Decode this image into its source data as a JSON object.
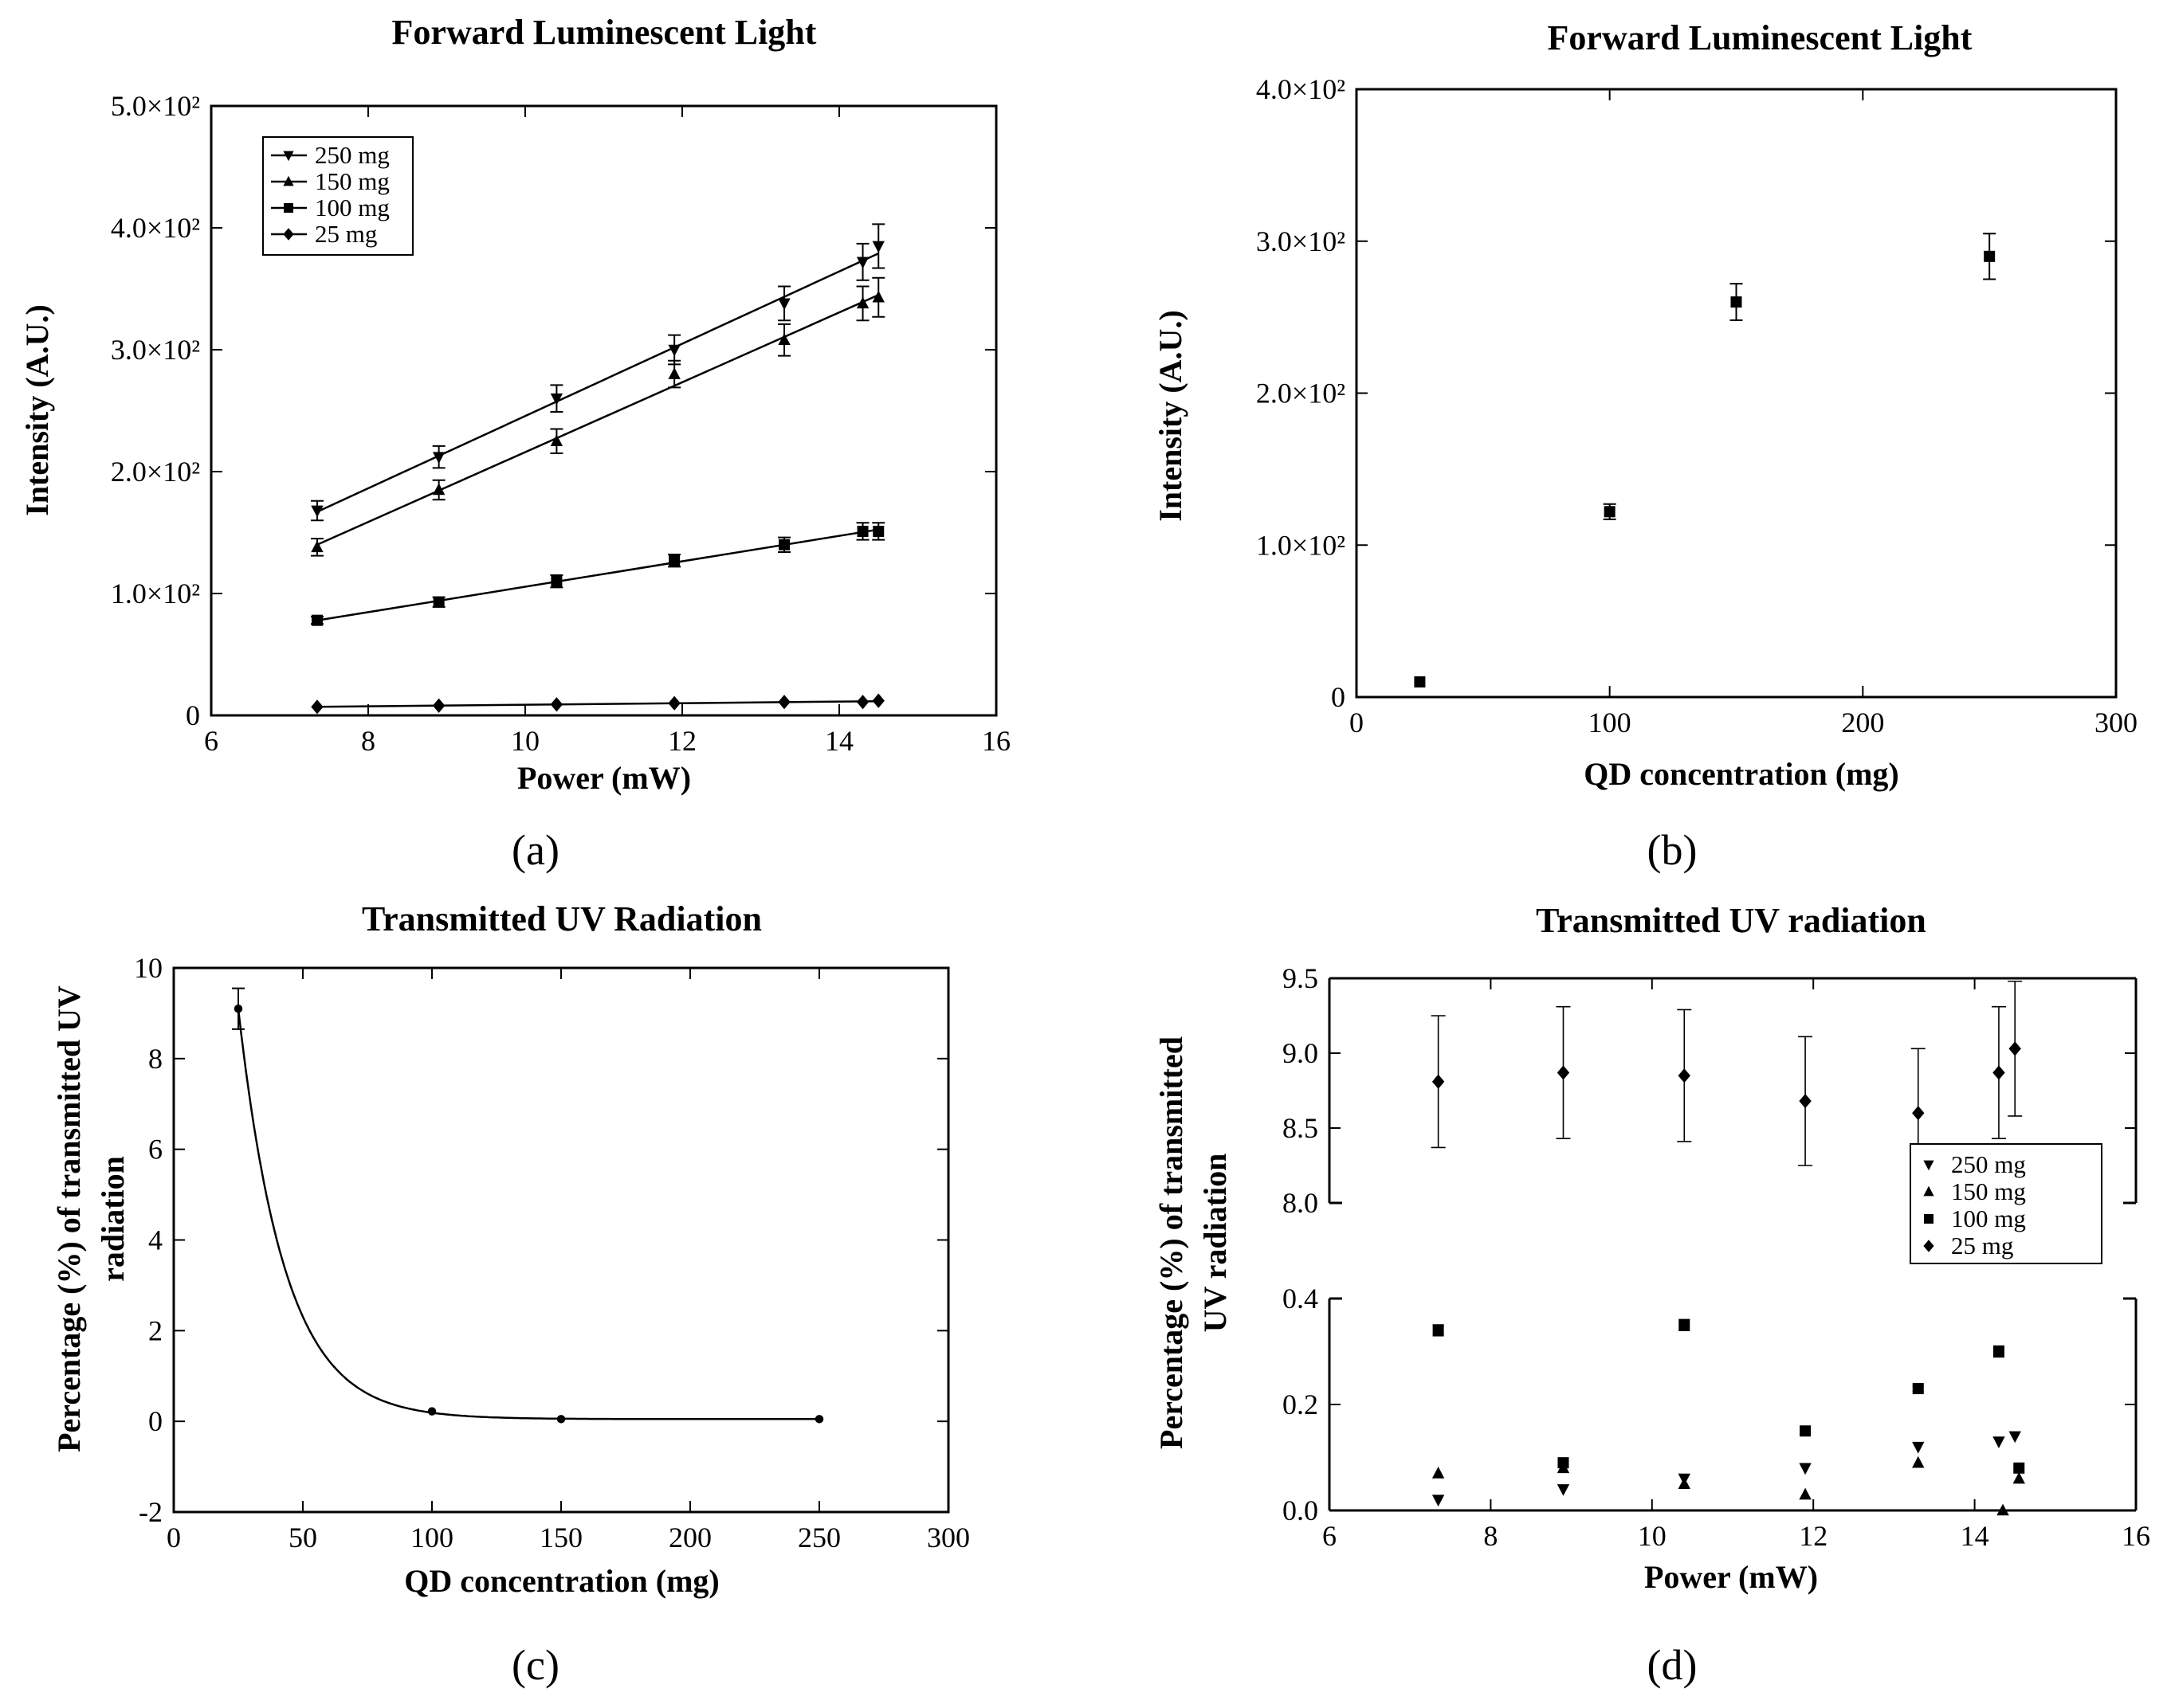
{
  "chart_data": [
    {
      "id": "a",
      "type": "scatter",
      "panel_label": "(a)",
      "title": "Forward Luminescent Light",
      "xlabel": "Power (mW)",
      "ylabel": "Intensity (A.U.)",
      "xlim": [
        6,
        16
      ],
      "ylim": [
        0,
        500
      ],
      "x_ticks": [
        6,
        8,
        10,
        12,
        14,
        16
      ],
      "y_ticks": [
        0,
        100,
        200,
        300,
        400,
        500
      ],
      "x_tick_labels": [
        "6",
        "8",
        "10",
        "12",
        "14",
        "16"
      ],
      "y_tick_labels": [
        "0",
        "1.0×10²",
        "2.0×10²",
        "3.0×10²",
        "4.0×10²",
        "5.0×10²"
      ],
      "legend_position": "top-left",
      "grid": false,
      "fit_lines": true,
      "x": [
        7.35,
        8.9,
        10.4,
        11.9,
        13.3,
        14.3,
        14.5
      ],
      "series": [
        {
          "name": "250 mg",
          "marker": "triangle-down",
          "values": [
            168,
            212,
            260,
            300,
            338,
            372,
            385
          ],
          "errors": [
            8,
            9,
            11,
            12,
            14,
            15,
            18
          ]
        },
        {
          "name": "150 mg",
          "marker": "triangle-up",
          "values": [
            138,
            185,
            225,
            280,
            308,
            338,
            343
          ],
          "errors": [
            7,
            8,
            10,
            11,
            13,
            14,
            16
          ]
        },
        {
          "name": "100 mg",
          "marker": "square",
          "values": [
            78,
            93,
            110,
            127,
            140,
            151,
            151
          ],
          "errors": [
            3,
            4,
            5,
            5,
            6,
            7,
            7
          ]
        },
        {
          "name": "25 mg",
          "marker": "diamond",
          "values": [
            7,
            8,
            9,
            10,
            11,
            11,
            12
          ],
          "errors": [
            0.5,
            0.5,
            0.5,
            0.5,
            0.5,
            0.5,
            0.5
          ]
        }
      ]
    },
    {
      "id": "b",
      "type": "scatter",
      "panel_label": "(b)",
      "title": "Forward Luminescent Light",
      "xlabel": "QD concentration (mg)",
      "ylabel": "Intensity (A.U.)",
      "xlim": [
        0,
        300
      ],
      "ylim": [
        0,
        400
      ],
      "x_ticks": [
        0,
        100,
        200,
        300
      ],
      "y_ticks": [
        0,
        100,
        200,
        300,
        400
      ],
      "x_tick_labels": [
        "0",
        "100",
        "200",
        "300"
      ],
      "y_tick_labels": [
        "0",
        "1.0×10²",
        "2.0×10²",
        "3.0×10²",
        "4.0×10²"
      ],
      "grid": false,
      "series": [
        {
          "name": "Intensity",
          "marker": "square",
          "x": [
            25,
            100,
            150,
            250
          ],
          "values": [
            10,
            122,
            260,
            290
          ],
          "errors": [
            1,
            5,
            12,
            15
          ]
        }
      ]
    },
    {
      "id": "c",
      "type": "scatter",
      "panel_label": "(c)",
      "title": "Transmitted UV Radiation",
      "xlabel": "QD concentration (mg)",
      "ylabel_lines": [
        "Percentage (%) of transmitted UV",
        "radiation"
      ],
      "xlim": [
        0,
        300
      ],
      "ylim": [
        -2,
        10
      ],
      "x_ticks": [
        0,
        50,
        100,
        150,
        200,
        250,
        300
      ],
      "y_ticks": [
        -2,
        0,
        2,
        4,
        6,
        8,
        10
      ],
      "x_tick_labels": [
        "0",
        "50",
        "100",
        "150",
        "200",
        "250",
        "300"
      ],
      "y_tick_labels": [
        "-2",
        "0",
        "2",
        "4",
        "6",
        "8",
        "10"
      ],
      "grid": false,
      "fit": "exponential decay",
      "series": [
        {
          "name": "Transmitted UV",
          "marker": "dot",
          "x": [
            25,
            100,
            150,
            250
          ],
          "values": [
            9.1,
            0.22,
            0.05,
            0.05
          ],
          "errors": [
            0.45,
            0.02,
            0.01,
            0.01
          ]
        }
      ]
    },
    {
      "id": "d",
      "type": "scatter",
      "panel_label": "(d)",
      "title": "Transmitted UV radiation",
      "xlabel": "Power (mW)",
      "ylabel_lines": [
        "Percentage (%) of transmitted",
        "UV radiation"
      ],
      "xlim": [
        6,
        16
      ],
      "ylim_upper": [
        8.0,
        9.5
      ],
      "ylim_lower": [
        0.0,
        0.4
      ],
      "x_ticks": [
        6,
        8,
        10,
        12,
        14,
        16
      ],
      "x_tick_labels": [
        "6",
        "8",
        "10",
        "12",
        "14",
        "16"
      ],
      "y_ticks_upper": [
        8.0,
        8.5,
        9.0,
        9.5
      ],
      "y_tick_labels_upper": [
        "8.0",
        "8.5",
        "9.0",
        "9.5"
      ],
      "y_ticks_lower": [
        0.0,
        0.2,
        0.4
      ],
      "y_tick_labels_lower": [
        "0.0",
        "0.2",
        "0.4"
      ],
      "broken_y_axis": true,
      "legend_position": "right",
      "grid": false,
      "series": [
        {
          "name": "250 mg",
          "marker": "triangle-down",
          "x": [
            7.35,
            8.9,
            10.4,
            11.9,
            13.3,
            14.3,
            14.5
          ],
          "values": [
            0.02,
            0.04,
            0.06,
            0.08,
            0.12,
            0.13,
            0.14
          ]
        },
        {
          "name": "150 mg",
          "marker": "triangle-up",
          "x": [
            7.35,
            8.9,
            10.4,
            11.9,
            13.3,
            14.35,
            14.55
          ],
          "values": [
            0.07,
            0.08,
            0.05,
            0.03,
            0.09,
            0.0,
            0.06
          ]
        },
        {
          "name": "100 mg",
          "marker": "square",
          "x": [
            7.35,
            8.9,
            10.4,
            11.9,
            13.3,
            14.3,
            14.55
          ],
          "values": [
            0.34,
            0.09,
            0.35,
            0.15,
            0.23,
            0.3,
            0.08
          ],
          "errors": [
            0.01,
            0.005,
            0.01,
            0.003,
            0.005,
            0.01,
            0.003
          ]
        },
        {
          "name": "25 mg",
          "marker": "diamond",
          "x": [
            7.35,
            8.9,
            10.4,
            11.9,
            13.3,
            14.3,
            14.5
          ],
          "values": [
            8.81,
            8.87,
            8.85,
            8.68,
            8.6,
            8.87,
            9.03
          ],
          "errors": [
            0.44,
            0.44,
            0.44,
            0.43,
            0.43,
            0.44,
            0.45
          ]
        }
      ]
    }
  ]
}
